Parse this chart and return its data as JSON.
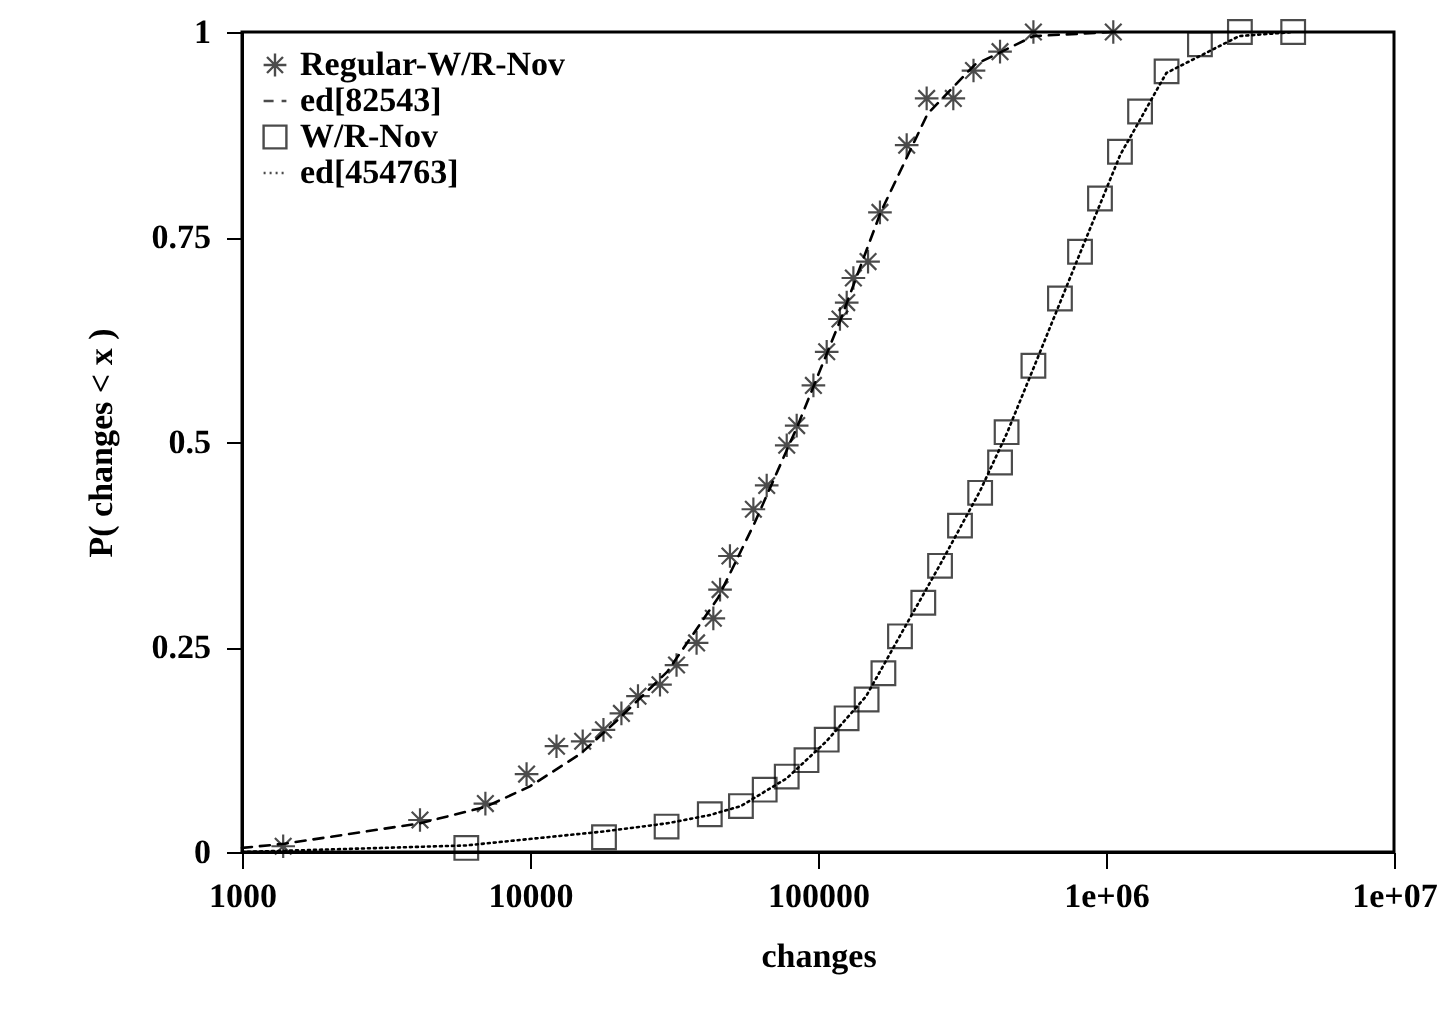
{
  "chart_data": {
    "type": "scatter",
    "xlabel": "changes",
    "ylabel": "P( changes < x )",
    "log": "x",
    "legend": "top left",
    "grid": false,
    "xlim": [
      1000,
      10000000
    ],
    "xticks": [
      1000,
      10000,
      100000,
      {
        "value": 1000000,
        "label": "1e+06"
      },
      {
        "value": 10000000,
        "label": "1e+07"
      }
    ],
    "ylim": [
      0,
      1
    ],
    "yticks": [
      0,
      0.25,
      0.5,
      0.75,
      1
    ],
    "series": [
      {
        "name": "Regular-W/R-Nov",
        "marker": "cross",
        "color": "#000000",
        "x": [
          1390,
          4150,
          7000,
          9730,
          12360,
          15240,
          17990,
          20770,
          23710,
          28270,
          32270,
          37880,
          43310,
          45700,
          49460,
          59650,
          66350,
          77880,
          84330,
          96400,
          107200,
          119200,
          125800,
          132700,
          149200,
          164100,
          203200,
          238400,
          295000,
          346700,
          428600,
          559700,
          1060000
        ],
        "values": [
          0.007,
          0.039,
          0.059,
          0.095,
          0.129,
          0.135,
          0.149,
          0.169,
          0.19,
          0.204,
          0.228,
          0.255,
          0.285,
          0.32,
          0.361,
          0.418,
          0.447,
          0.496,
          0.52,
          0.569,
          0.61,
          0.65,
          0.67,
          0.7,
          0.72,
          0.78,
          0.862,
          0.919,
          0.919,
          0.953,
          0.976,
          1,
          1
        ]
      },
      {
        "name": "ed[82543]",
        "type": "line",
        "line_style": "dashed",
        "color": "#000000",
        "x": [
          1000,
          1400,
          4150,
          7000,
          10000,
          15000,
          20000,
          30000,
          45000,
          60000,
          85000,
          120000,
          165000,
          240000,
          350000,
          560000,
          1060000
        ],
        "values": [
          0.005,
          0.01,
          0.035,
          0.055,
          0.08,
          0.12,
          0.16,
          0.22,
          0.31,
          0.4,
          0.52,
          0.65,
          0.78,
          0.9,
          0.96,
          0.995,
          1
        ]
      },
      {
        "name": "W/R-Nov",
        "marker": "square",
        "color": "#000000",
        "x": [
          6010,
          18070,
          29800,
          42100,
          54000,
          65300,
          77880,
          91200,
          107200,
          125700,
          147500,
          168700,
          192600,
          232100,
          265300,
          311200,
          365600,
          428700,
          451700,
          559700,
          692000,
          812400,
          953000,
          1118000,
          1313000,
          1623000,
          2119000,
          2917000,
          4466000
        ],
        "values": [
          0.005,
          0.018,
          0.031,
          0.046,
          0.056,
          0.076,
          0.092,
          0.112,
          0.137,
          0.163,
          0.186,
          0.218,
          0.263,
          0.304,
          0.349,
          0.398,
          0.438,
          0.475,
          0.512,
          0.593,
          0.675,
          0.732,
          0.797,
          0.854,
          0.903,
          0.952,
          0.985,
          1,
          1
        ]
      },
      {
        "name": "ed[454763]",
        "type": "line",
        "line_style": "dotted",
        "color": "#000000",
        "x": [
          1000,
          6000,
          18000,
          30000,
          42000,
          54000,
          78000,
          107000,
          147000,
          190000,
          265000,
          365000,
          452000,
          560000,
          812000,
          1120000,
          1620000,
          2900000,
          4470000
        ],
        "values": [
          0,
          0.008,
          0.025,
          0.035,
          0.045,
          0.056,
          0.09,
          0.135,
          0.19,
          0.26,
          0.35,
          0.44,
          0.51,
          0.59,
          0.73,
          0.85,
          0.95,
          0.995,
          1
        ]
      }
    ]
  }
}
